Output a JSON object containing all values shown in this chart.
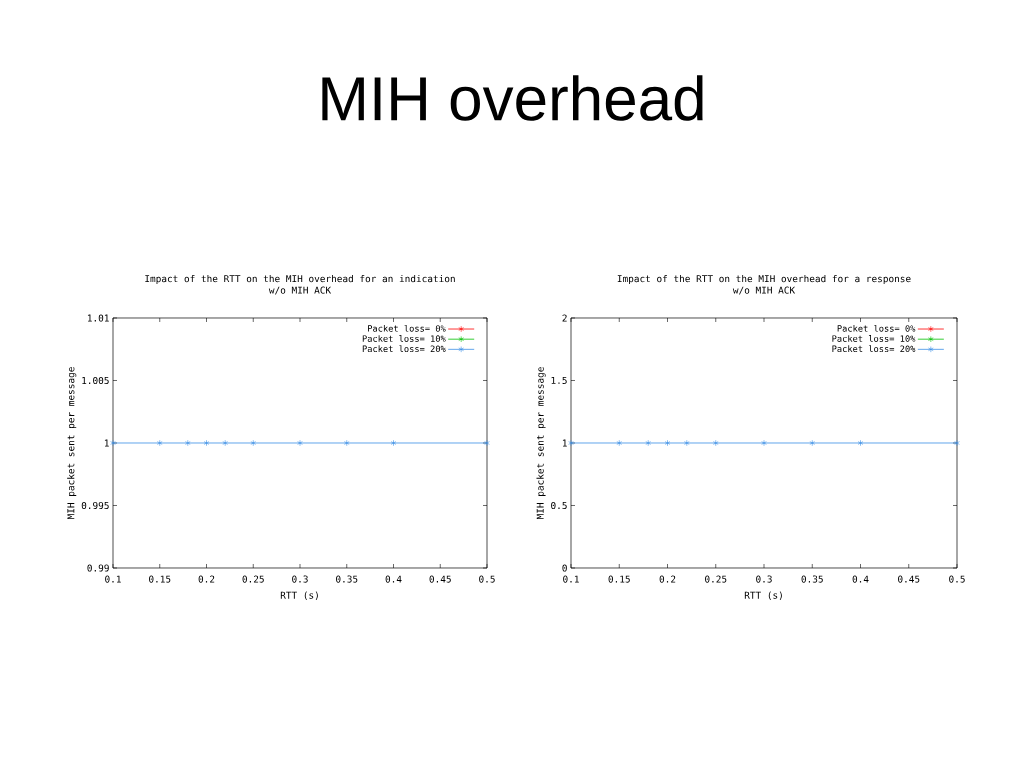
{
  "chart_data": [
    {
      "type": "other",
      "title": "MIH overhead"
    },
    {
      "type": "line",
      "title": "Impact of the RTT on the MIH overhead for an indication",
      "subtitle": "w/o MIH ACK",
      "xlabel": "RTT (s)",
      "ylabel": "MIH packet sent per message",
      "x": [
        0.1,
        0.15,
        0.18,
        0.2,
        0.22,
        0.25,
        0.3,
        0.35,
        0.4,
        0.5
      ],
      "series": [
        {
          "name": "Packet loss= 0%",
          "color": "#ff0000",
          "marker": "cross",
          "values": [
            null,
            null,
            null,
            null,
            null,
            null,
            null,
            null,
            null,
            null
          ]
        },
        {
          "name": "Packet loss= 10%",
          "color": "#00c000",
          "marker": "cross",
          "values": [
            null,
            null,
            null,
            null,
            null,
            null,
            null,
            null,
            null,
            null
          ]
        },
        {
          "name": "Packet loss= 20%",
          "color": "#3a8ee6",
          "marker": "cross",
          "values": [
            1,
            1,
            1,
            1,
            1,
            1,
            1,
            1,
            1,
            1
          ]
        }
      ],
      "xlim": [
        0.1,
        0.5
      ],
      "xticks": [
        0.1,
        0.15,
        0.2,
        0.25,
        0.3,
        0.35,
        0.4,
        0.45,
        0.5
      ],
      "ylim": [
        0.99,
        1.01
      ],
      "yticks": [
        0.99,
        0.995,
        1,
        1.005,
        1.01
      ],
      "legend": "top right"
    },
    {
      "type": "line",
      "title": "Impact of the RTT on the MIH overhead for a response",
      "subtitle": "w/o MIH ACK",
      "xlabel": "RTT (s)",
      "ylabel": "MIH packet sent per message",
      "x": [
        0.1,
        0.15,
        0.18,
        0.2,
        0.22,
        0.25,
        0.3,
        0.35,
        0.4,
        0.5
      ],
      "series": [
        {
          "name": "Packet loss= 0%",
          "color": "#ff0000",
          "marker": "cross",
          "values": [
            null,
            null,
            null,
            null,
            null,
            null,
            null,
            null,
            null,
            null
          ]
        },
        {
          "name": "Packet loss= 10%",
          "color": "#00c000",
          "marker": "cross",
          "values": [
            null,
            null,
            null,
            null,
            null,
            null,
            null,
            null,
            null,
            null
          ]
        },
        {
          "name": "Packet loss= 20%",
          "color": "#3a8ee6",
          "marker": "cross",
          "values": [
            1,
            1,
            1,
            1,
            1,
            1,
            1,
            1,
            1,
            1
          ]
        }
      ],
      "xlim": [
        0.1,
        0.5
      ],
      "xticks": [
        0.1,
        0.15,
        0.2,
        0.25,
        0.3,
        0.35,
        0.4,
        0.45,
        0.5
      ],
      "ylim": [
        0,
        2
      ],
      "yticks": [
        0,
        0.5,
        1,
        1.5,
        2
      ],
      "legend": "top right"
    }
  ]
}
